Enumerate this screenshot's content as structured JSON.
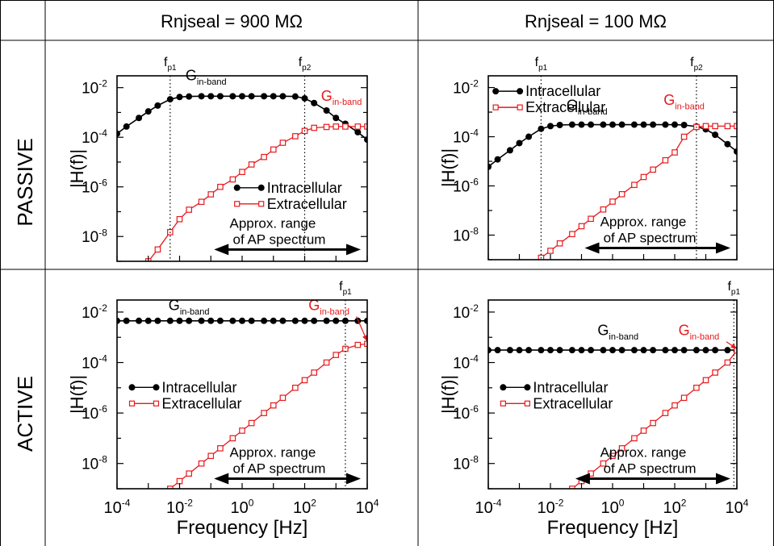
{
  "table": {
    "col_headers": [
      "Rnjseal = 900 MΩ",
      "Rnjseal = 100 MΩ"
    ],
    "row_headers": [
      "PASSIVE",
      "ACTIVE"
    ]
  },
  "colors": {
    "intracellular": "#000000",
    "extracellular": "#e8191c"
  },
  "chart_data": [
    {
      "type": "line",
      "panel": "passive-900",
      "xscale": "log",
      "yscale": "log",
      "xlim": [
        0.0001,
        10000
      ],
      "ylim": [
        1e-09,
        0.03
      ],
      "xlabel": "",
      "ylabel": "|H(f)|",
      "xticks": [],
      "yticks": [
        {
          "value": 0.01,
          "base": "10",
          "exp": "-2"
        },
        {
          "value": 0.0001,
          "base": "10",
          "exp": "-4"
        },
        {
          "value": 1e-06,
          "base": "10",
          "exp": "-6"
        },
        {
          "value": 1e-08,
          "base": "10",
          "exp": "-8"
        }
      ],
      "legend": {
        "position": "center-right",
        "labels": [
          "Intracellular",
          "Extracellular"
        ]
      },
      "vlines": [
        {
          "x": 0.005,
          "base": "f",
          "sub": "p1"
        },
        {
          "x": 100,
          "base": "f",
          "sub": "p2"
        }
      ],
      "annotations": [
        {
          "base": "G",
          "sub": "in-band",
          "series": "intracellular",
          "x": 0.07,
          "y": 0.02
        },
        {
          "base": "G",
          "sub": "in-band",
          "series": "extracellular",
          "x": 1500,
          "y": 0.003
        }
      ],
      "range_arrow": {
        "line1": "Approx. range",
        "line2": "of AP spectrum",
        "x_from": 0.1,
        "x_to": 10000,
        "y": 3e-09
      },
      "series": [
        {
          "name": "Intracellular",
          "x": [
            0.0001,
            0.0002,
            0.0005,
            0.001,
            0.002,
            0.005,
            0.01,
            0.02,
            0.05,
            0.1,
            0.2,
            0.5,
            1,
            2,
            5,
            10,
            20,
            50,
            100,
            200,
            500,
            1000,
            2000,
            5000,
            10000
          ],
          "y": [
            0.00014,
            0.00027,
            0.0006,
            0.0011,
            0.0019,
            0.0034,
            0.0042,
            0.0044,
            0.0045,
            0.0045,
            0.0045,
            0.0045,
            0.0045,
            0.0045,
            0.0045,
            0.0045,
            0.0045,
            0.0044,
            0.0037,
            0.0024,
            0.0012,
            0.0006,
            0.00035,
            0.00016,
            8e-05
          ]
        },
        {
          "name": "Extracellular",
          "x": [
            0.001,
            0.002,
            0.005,
            0.01,
            0.02,
            0.05,
            0.1,
            0.2,
            0.5,
            1,
            2,
            5,
            10,
            20,
            50,
            100,
            200,
            500,
            1000,
            2000,
            5000,
            10000
          ],
          "y": [
            1e-09,
            3e-09,
            1.5e-08,
            5e-08,
            1.2e-07,
            2.5e-07,
            5e-07,
            1e-06,
            2e-06,
            4e-06,
            8e-06,
            1.6e-05,
            3.2e-05,
            6e-05,
            0.00011,
            0.00018,
            0.00024,
            0.00026,
            0.00027,
            0.00027,
            0.00027,
            0.00027
          ]
        }
      ]
    },
    {
      "type": "line",
      "panel": "passive-100",
      "xscale": "log",
      "yscale": "log",
      "xlim": [
        0.0001,
        10000
      ],
      "ylim": [
        1e-09,
        0.03
      ],
      "xlabel": "",
      "ylabel": "|H(f)|",
      "xticks": [],
      "yticks": [
        {
          "value": 0.01,
          "base": "10",
          "exp": "-2"
        },
        {
          "value": 0.0001,
          "base": "10",
          "exp": "-4"
        },
        {
          "value": 1e-06,
          "base": "10",
          "exp": "-6"
        },
        {
          "value": 1e-08,
          "base": "10",
          "exp": "-8"
        }
      ],
      "legend": {
        "position": "top-left",
        "labels": [
          "Intracellular",
          "Extracellular"
        ]
      },
      "vlines": [
        {
          "x": 0.005,
          "base": "f",
          "sub": "p1"
        },
        {
          "x": 500,
          "base": "f",
          "sub": "p2"
        }
      ],
      "annotations": [
        {
          "base": "G",
          "sub": "in-band",
          "series": "intracellular",
          "x": 0.15,
          "y": 0.0012
        },
        {
          "base": "G",
          "sub": "in-band",
          "series": "extracellular",
          "x": 200,
          "y": 0.002
        }
      ],
      "range_arrow": {
        "line1": "Approx. range",
        "line2": "of AP spectrum",
        "x_from": 0.1,
        "x_to": 10000,
        "y": 3e-09
      },
      "series": [
        {
          "name": "Intracellular",
          "x": [
            0.0001,
            0.0002,
            0.0005,
            0.001,
            0.002,
            0.005,
            0.01,
            0.02,
            0.05,
            0.1,
            0.2,
            0.5,
            1,
            2,
            5,
            10,
            20,
            50,
            100,
            200,
            500,
            1000,
            2000,
            5000,
            10000
          ],
          "y": [
            6e-06,
            1.2e-05,
            2.8e-05,
            5.5e-05,
            0.0001,
            0.00021,
            0.00027,
            0.0003,
            0.00031,
            0.00031,
            0.00031,
            0.00031,
            0.00031,
            0.00031,
            0.00031,
            0.00031,
            0.00031,
            0.00031,
            0.00031,
            0.0003,
            0.00026,
            0.0002,
            0.00012,
            5e-05,
            2.5e-05
          ]
        },
        {
          "name": "Extracellular",
          "x": [
            0.005,
            0.01,
            0.02,
            0.05,
            0.1,
            0.2,
            0.5,
            1,
            2,
            5,
            10,
            20,
            50,
            100,
            200,
            500,
            1000,
            2000,
            5000,
            10000
          ],
          "y": [
            1.2e-09,
            2.3e-09,
            4.6e-09,
            1.1e-08,
            2.3e-08,
            4.6e-08,
            1.1e-07,
            2.3e-07,
            4.6e-07,
            1.1e-06,
            2.3e-06,
            4.6e-06,
            1.1e-05,
            2.3e-05,
            0.0001,
            0.00025,
            0.00027,
            0.00027,
            0.00027,
            0.00027
          ]
        }
      ]
    },
    {
      "type": "line",
      "panel": "active-900",
      "xscale": "log",
      "yscale": "log",
      "xlim": [
        0.0001,
        10000
      ],
      "ylim": [
        1e-09,
        0.03
      ],
      "xlabel": "Frequency [Hz]",
      "ylabel": "|H(f)|",
      "xticks": [
        {
          "value": 0.0001,
          "base": "10",
          "exp": "-4"
        },
        {
          "value": 0.01,
          "base": "10",
          "exp": "-2"
        },
        {
          "value": 1,
          "base": "10",
          "exp": "0"
        },
        {
          "value": 100,
          "base": "10",
          "exp": "2"
        },
        {
          "value": 10000,
          "base": "10",
          "exp": "4"
        }
      ],
      "yticks": [
        {
          "value": 0.01,
          "base": "10",
          "exp": "-2"
        },
        {
          "value": 0.0001,
          "base": "10",
          "exp": "-4"
        },
        {
          "value": 1e-06,
          "base": "10",
          "exp": "-6"
        },
        {
          "value": 1e-08,
          "base": "10",
          "exp": "-8"
        }
      ],
      "legend": {
        "position": "center-left",
        "labels": [
          "Intracellular",
          "Extracellular"
        ]
      },
      "vlines": [
        {
          "x": 2000,
          "base": "f",
          "sub": "p1"
        }
      ],
      "annotations": [
        {
          "base": "G",
          "sub": "in-band",
          "series": "intracellular",
          "x": 0.02,
          "y": 0.012
        },
        {
          "base": "G",
          "sub": "in-band",
          "series": "extracellular",
          "x": 600,
          "y": 0.012,
          "arrow_to": {
            "x": 10000,
            "y": 0.0007
          }
        }
      ],
      "range_arrow": {
        "line1": "Approx. range",
        "line2": "of AP spectrum",
        "x_from": 0.1,
        "x_to": 10000,
        "y": 2.5e-09
      },
      "series": [
        {
          "name": "Intracellular",
          "x": [
            0.0001,
            0.0002,
            0.0005,
            0.001,
            0.002,
            0.005,
            0.01,
            0.02,
            0.05,
            0.1,
            0.2,
            0.5,
            1,
            2,
            5,
            10,
            20,
            50,
            100,
            200,
            500,
            1000,
            2000,
            5000,
            10000
          ],
          "y": [
            0.0045,
            0.0045,
            0.0045,
            0.0045,
            0.0045,
            0.0045,
            0.0045,
            0.0045,
            0.0045,
            0.0045,
            0.0045,
            0.0045,
            0.0045,
            0.0045,
            0.0045,
            0.0045,
            0.0045,
            0.0045,
            0.0045,
            0.0045,
            0.0045,
            0.0045,
            0.0045,
            0.0045,
            0.0045
          ]
        },
        {
          "name": "Extracellular",
          "x": [
            0.005,
            0.01,
            0.02,
            0.05,
            0.1,
            0.2,
            0.5,
            1,
            2,
            5,
            10,
            20,
            50,
            100,
            200,
            500,
            1000,
            2000,
            5000,
            10000
          ],
          "y": [
            1e-09,
            2e-09,
            4e-09,
            1e-08,
            2e-08,
            4e-08,
            1e-07,
            2e-07,
            4e-07,
            1e-06,
            2e-06,
            4e-06,
            1e-05,
            2e-05,
            4e-05,
            0.0001,
            0.0002,
            0.00035,
            0.0005,
            0.00055
          ]
        }
      ]
    },
    {
      "type": "line",
      "panel": "active-100",
      "xscale": "log",
      "yscale": "log",
      "xlim": [
        0.0001,
        10000
      ],
      "ylim": [
        1e-09,
        0.03
      ],
      "xlabel": "Frequency [Hz]",
      "ylabel": "|H(f)|",
      "xticks": [
        {
          "value": 0.0001,
          "base": "10",
          "exp": "-4"
        },
        {
          "value": 0.01,
          "base": "10",
          "exp": "-2"
        },
        {
          "value": 1,
          "base": "10",
          "exp": "0"
        },
        {
          "value": 100,
          "base": "10",
          "exp": "2"
        },
        {
          "value": 10000,
          "base": "10",
          "exp": "4"
        }
      ],
      "yticks": [
        {
          "value": 0.01,
          "base": "10",
          "exp": "-2"
        },
        {
          "value": 0.0001,
          "base": "10",
          "exp": "-4"
        },
        {
          "value": 1e-06,
          "base": "10",
          "exp": "-6"
        },
        {
          "value": 1e-08,
          "base": "10",
          "exp": "-8"
        }
      ],
      "legend": {
        "position": "center-left",
        "labels": [
          "Intracellular",
          "Extracellular"
        ]
      },
      "vlines": [
        {
          "x": 8000,
          "base": "f",
          "sub": "p1"
        }
      ],
      "annotations": [
        {
          "base": "G",
          "sub": "in-band",
          "series": "intracellular",
          "x": 1.5,
          "y": 0.0012
        },
        {
          "base": "G",
          "sub": "in-band",
          "series": "extracellular",
          "x": 600,
          "y": 0.0012,
          "arrow_to": {
            "x": 10000,
            "y": 0.00035
          }
        }
      ],
      "range_arrow": {
        "line1": "Approx. range",
        "line2": "of AP spectrum",
        "x_from": 0.05,
        "x_to": 10000,
        "y": 2.5e-09
      },
      "series": [
        {
          "name": "Intracellular",
          "x": [
            0.0001,
            0.0002,
            0.0005,
            0.001,
            0.002,
            0.005,
            0.01,
            0.02,
            0.05,
            0.1,
            0.2,
            0.5,
            1,
            2,
            5,
            10,
            20,
            50,
            100,
            200,
            500,
            1000,
            2000,
            5000,
            10000
          ],
          "y": [
            0.00031,
            0.00031,
            0.00031,
            0.00031,
            0.00031,
            0.00031,
            0.00031,
            0.00031,
            0.00031,
            0.00031,
            0.00031,
            0.00031,
            0.00031,
            0.00031,
            0.00031,
            0.00031,
            0.00031,
            0.00031,
            0.00031,
            0.00031,
            0.00031,
            0.00031,
            0.00031,
            0.00031,
            0.00031
          ]
        },
        {
          "name": "Extracellular",
          "x": [
            0.05,
            0.1,
            0.2,
            0.5,
            1,
            2,
            5,
            10,
            20,
            50,
            100,
            200,
            500,
            1000,
            2000,
            5000,
            10000
          ],
          "y": [
            1e-09,
            2e-09,
            4e-09,
            1e-08,
            2e-08,
            4e-08,
            1e-07,
            2e-07,
            4e-07,
            1e-06,
            2e-06,
            4e-06,
            1e-05,
            2e-05,
            4e-05,
            0.0001,
            0.0003
          ]
        }
      ]
    }
  ]
}
